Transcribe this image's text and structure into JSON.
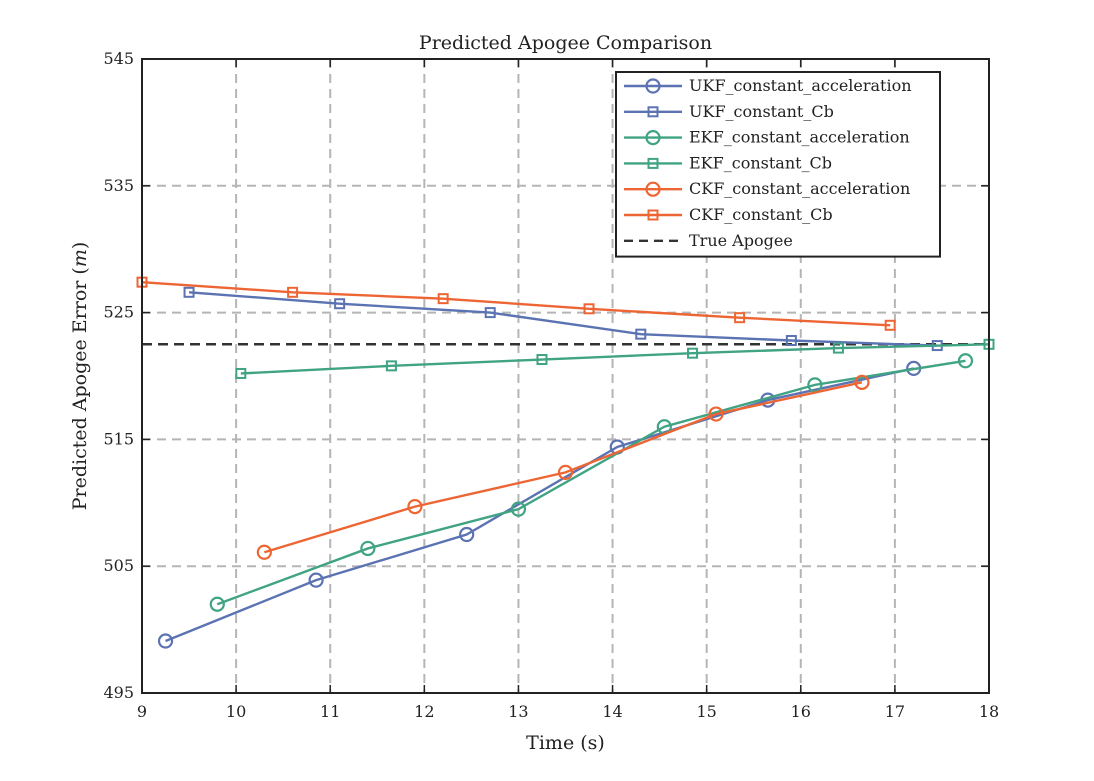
{
  "chart_data": {
    "type": "line",
    "title": "Predicted Apogee Comparison",
    "xlabel": "Time (s)",
    "ylabel_main": "Predicted Apogee Error (",
    "ylabel_var": "m",
    "ylabel_close": ")",
    "xlim": [
      9,
      18
    ],
    "ylim": [
      495,
      545
    ],
    "xticks": [
      9,
      10,
      11,
      12,
      13,
      14,
      15,
      16,
      17,
      18
    ],
    "yticks": [
      495,
      505,
      515,
      525,
      535,
      545
    ],
    "grid": true,
    "legend_position": "top-right",
    "true_apogee": 522.5,
    "series": [
      {
        "name": "UKF_constant_acceleration",
        "color": "#5b73b2",
        "marker": "circle",
        "points": [
          [
            9.25,
            499.1
          ],
          [
            10.85,
            503.9
          ],
          [
            12.45,
            507.5
          ],
          [
            14.05,
            514.4
          ],
          [
            15.65,
            518.1
          ],
          [
            17.2,
            520.6
          ]
        ]
      },
      {
        "name": "UKF_constant_Cb",
        "color": "#5b73b2",
        "marker": "square",
        "points": [
          [
            9.5,
            526.6
          ],
          [
            11.1,
            525.7
          ],
          [
            12.7,
            525.0
          ],
          [
            14.3,
            523.3
          ],
          [
            15.9,
            522.8
          ],
          [
            17.45,
            522.4
          ]
        ]
      },
      {
        "name": "EKF_constant_acceleration",
        "color": "#40a383",
        "marker": "circle",
        "points": [
          [
            9.8,
            502.0
          ],
          [
            11.4,
            506.4
          ],
          [
            13.0,
            509.5
          ],
          [
            14.55,
            516.0
          ],
          [
            16.15,
            519.3
          ],
          [
            17.75,
            521.2
          ]
        ]
      },
      {
        "name": "EKF_constant_Cb",
        "color": "#40a383",
        "marker": "square",
        "points": [
          [
            10.05,
            520.2
          ],
          [
            11.65,
            520.8
          ],
          [
            13.25,
            521.3
          ],
          [
            14.85,
            521.8
          ],
          [
            16.4,
            522.2
          ],
          [
            18.0,
            522.5
          ]
        ]
      },
      {
        "name": "CKF_constant_acceleration",
        "color": "#ee6534",
        "marker": "circle",
        "points": [
          [
            10.3,
            506.1
          ],
          [
            11.9,
            509.7
          ],
          [
            13.5,
            512.4
          ],
          [
            15.1,
            517.0
          ],
          [
            16.65,
            519.5
          ]
        ]
      },
      {
        "name": "CKF_constant_Cb",
        "color": "#ee6534",
        "marker": "square",
        "points": [
          [
            9.0,
            527.4
          ],
          [
            10.6,
            526.6
          ],
          [
            12.2,
            526.1
          ],
          [
            13.75,
            525.3
          ],
          [
            15.35,
            524.6
          ],
          [
            16.95,
            524.0
          ]
        ]
      }
    ],
    "reference_line": {
      "name": "True Apogee",
      "color": "#333333"
    }
  }
}
